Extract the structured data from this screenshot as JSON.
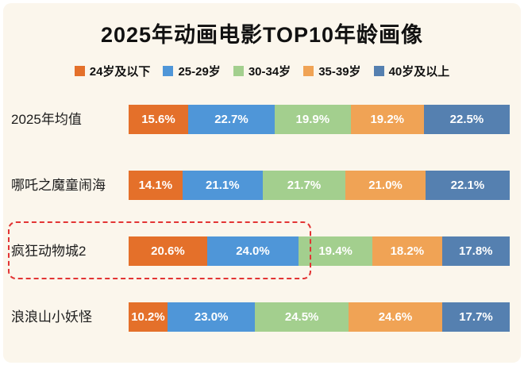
{
  "title": "2025年动画电影TOP10年龄画像",
  "chart_data": {
    "type": "bar",
    "orientation": "horizontal-stacked",
    "title": "2025年动画电影TOP10年龄画像",
    "value_suffix": "%",
    "legend_position": "top",
    "series_labels": [
      "24岁及以下",
      "25-29岁",
      "30-34岁",
      "35-39岁",
      "40岁及以上"
    ],
    "series_colors": [
      "#e4702a",
      "#4f96d8",
      "#a3cf8e",
      "#f0a355",
      "#5580b0"
    ],
    "categories": [
      "2025年均值",
      "哪吒之魔童闹海",
      "疯狂动物城2",
      "浪浪山小妖怪"
    ],
    "rows": [
      {
        "label": "2025年均值",
        "values": [
          15.6,
          22.7,
          19.9,
          19.2,
          22.5
        ],
        "highlighted": false
      },
      {
        "label": "哪吒之魔童闹海",
        "values": [
          14.1,
          21.1,
          21.7,
          21.0,
          22.1
        ],
        "highlighted": false
      },
      {
        "label": "疯狂动物城2",
        "values": [
          20.6,
          24.0,
          19.4,
          18.2,
          17.8
        ],
        "highlighted": true
      },
      {
        "label": "浪浪山小妖怪",
        "values": [
          10.2,
          23.0,
          24.5,
          24.6,
          17.7
        ],
        "highlighted": false
      }
    ],
    "highlight_color": "#e23434",
    "background_color": "#fbf6ec"
  }
}
